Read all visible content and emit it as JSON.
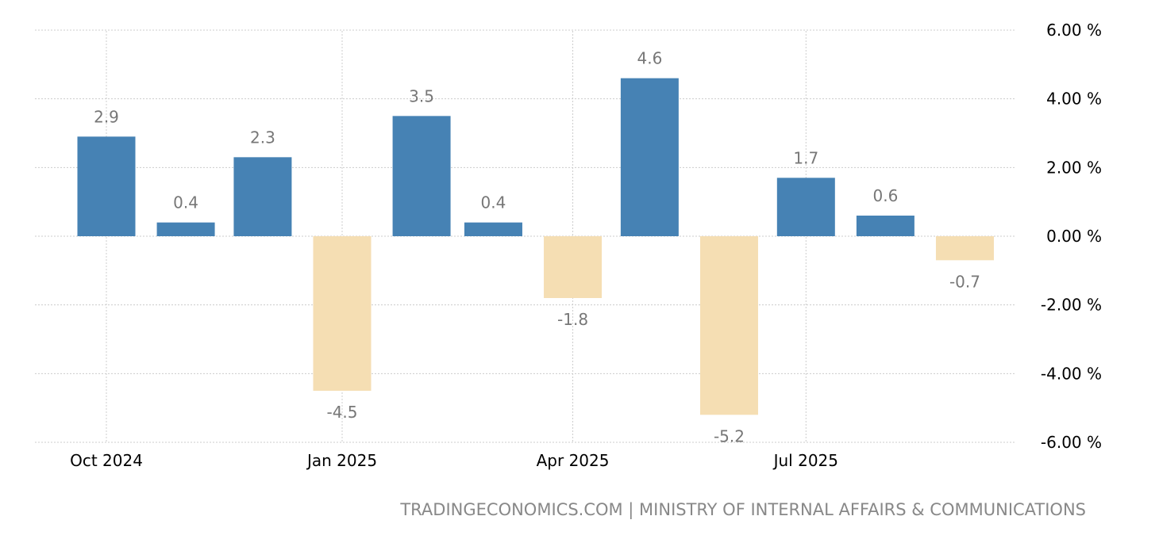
{
  "chart_data": {
    "type": "bar",
    "categories": [
      "2024-10",
      "2024-11",
      "2024-12",
      "2025-01",
      "2025-02",
      "2025-03",
      "2025-04",
      "2025-05",
      "2025-06",
      "2025-07",
      "2025-08",
      "2025-09"
    ],
    "values": [
      2.9,
      0.4,
      2.3,
      -4.5,
      3.5,
      0.4,
      -1.8,
      4.6,
      -5.2,
      1.7,
      0.6,
      -0.7
    ],
    "data_labels": [
      "2.9",
      "0.4",
      "2.3",
      "-4.5",
      "3.5",
      "0.4",
      "-1.8",
      "4.6",
      "-5.2",
      "1.7",
      "0.6",
      "-0.7"
    ],
    "ylim": [
      -6,
      6
    ],
    "yticks": [
      6,
      4,
      2,
      0,
      -2,
      -4,
      -6
    ],
    "ytick_labels": [
      "6.00 %",
      "4.00 %",
      "2.00 %",
      "0.00 %",
      "-2.00 %",
      "-4.00 %",
      "-6.00 %"
    ],
    "xticks": [
      "2024-10",
      "2025-01",
      "2025-04",
      "2025-07"
    ],
    "xtick_labels": [
      "Oct 2024",
      "Jan 2025",
      "Apr 2025",
      "Jul 2025"
    ],
    "yaxis_position": "right",
    "grid": true,
    "colors": {
      "positive": "#4682b4",
      "negative": "#f5deb3",
      "label": "#777777",
      "grid": "#cccccc"
    }
  },
  "source": "TRADINGECONOMICS.COM | MINISTRY OF INTERNAL AFFAIRS & COMMUNICATIONS"
}
